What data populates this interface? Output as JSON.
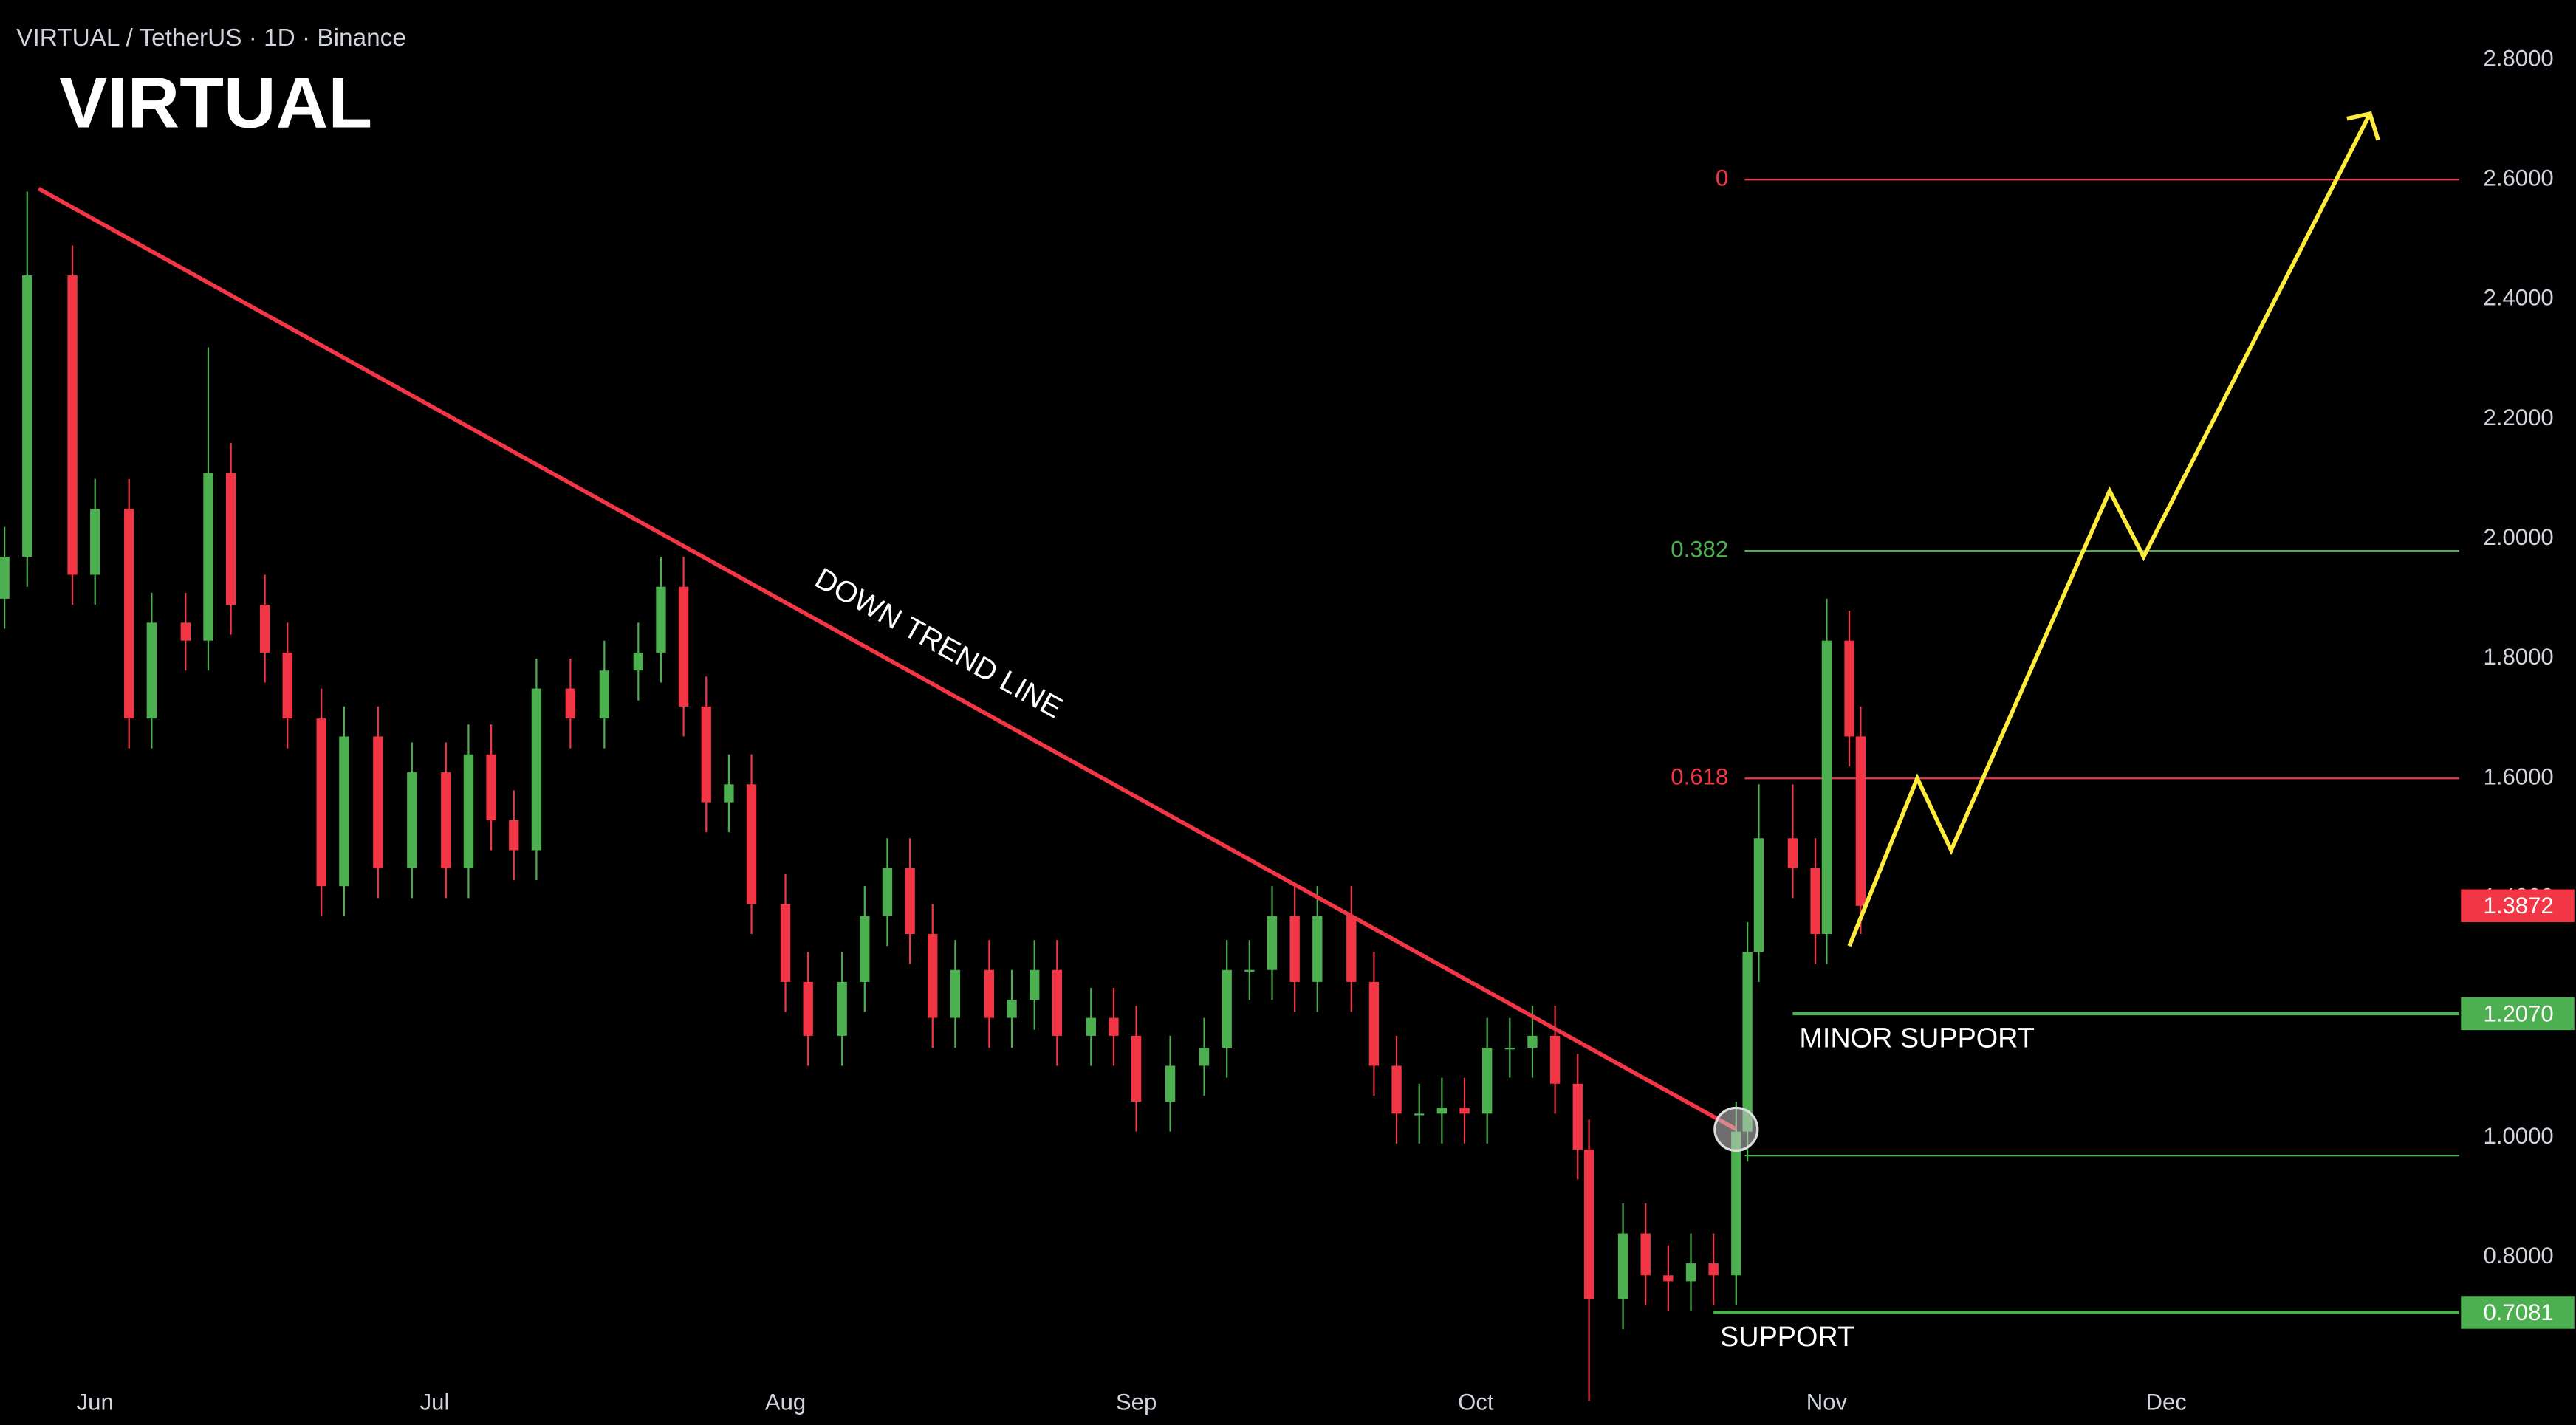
{
  "chart_data": {
    "type": "candlestick",
    "header": "VIRTUAL / TetherUS · 1D · Binance",
    "title": "VIRTUAL",
    "xlim": [
      -8.4,
      208.9
    ],
    "xticks": [
      {
        "value": 0,
        "label": "Jun"
      },
      {
        "value": 30,
        "label": "Jul"
      },
      {
        "value": 61,
        "label": "Aug"
      },
      {
        "value": 92,
        "label": "Sep"
      },
      {
        "value": 122,
        "label": "Oct"
      },
      {
        "value": 153,
        "label": "Nov"
      },
      {
        "value": 183,
        "label": "Dec"
      }
    ],
    "ylim": [
      0.52,
      2.9
    ],
    "yticks": [
      {
        "value": 0.8,
        "label": "0.8000"
      },
      {
        "value": 1.0,
        "label": "1.0000"
      },
      {
        "value": 1.2,
        "label": "1.2000"
      },
      {
        "value": 1.4,
        "label": "1.4000"
      },
      {
        "value": 1.6,
        "label": "1.6000"
      },
      {
        "value": 1.8,
        "label": "1.8000"
      },
      {
        "value": 2.0,
        "label": "2.0000"
      },
      {
        "value": 2.2,
        "label": "2.2000"
      },
      {
        "value": 2.4,
        "label": "2.4000"
      },
      {
        "value": 2.6,
        "label": "2.6000"
      },
      {
        "value": 2.8,
        "label": "2.8000"
      }
    ],
    "up_color": "#4caf50",
    "down_color": "#f23645",
    "x": [
      -8,
      -6,
      -2,
      0,
      3,
      5,
      8,
      10,
      12,
      15,
      17,
      20,
      22,
      25,
      28,
      31,
      33,
      35,
      37,
      39,
      42,
      45,
      48,
      50,
      52,
      54,
      56,
      58,
      61,
      63,
      66,
      68,
      70,
      72,
      74,
      76,
      79,
      81,
      83,
      85,
      88,
      90,
      92,
      95,
      98,
      100,
      102,
      104,
      106,
      108,
      111,
      113,
      115,
      117,
      119,
      121,
      123,
      125,
      127,
      129,
      131,
      132,
      135,
      137,
      139,
      141,
      143,
      145,
      146,
      147,
      150,
      152,
      153,
      155,
      156
    ],
    "open": [
      1.9,
      1.97,
      2.44,
      1.94,
      2.05,
      1.7,
      1.86,
      1.83,
      2.11,
      1.89,
      1.81,
      1.7,
      1.42,
      1.67,
      1.45,
      1.61,
      1.45,
      1.64,
      1.53,
      1.48,
      1.75,
      1.7,
      1.78,
      1.81,
      1.92,
      1.72,
      1.56,
      1.59,
      1.39,
      1.26,
      1.17,
      1.26,
      1.37,
      1.45,
      1.34,
      1.2,
      1.28,
      1.2,
      1.23,
      1.28,
      1.17,
      1.2,
      1.17,
      1.06,
      1.12,
      1.15,
      1.28,
      1.28,
      1.37,
      1.26,
      1.37,
      1.26,
      1.12,
      1.04,
      1.04,
      1.05,
      1.04,
      1.15,
      1.15,
      1.17,
      1.09,
      0.98,
      0.73,
      0.84,
      0.77,
      0.76,
      0.79,
      0.77,
      1.01,
      1.31,
      1.5,
      1.45,
      1.34,
      1.83,
      1.67
    ],
    "high": [
      2.02,
      2.58,
      2.49,
      2.1,
      2.1,
      1.91,
      1.91,
      2.32,
      2.16,
      1.94,
      1.86,
      1.75,
      1.72,
      1.72,
      1.66,
      1.66,
      1.69,
      1.69,
      1.58,
      1.8,
      1.8,
      1.83,
      1.86,
      1.97,
      1.97,
      1.77,
      1.64,
      1.64,
      1.44,
      1.31,
      1.31,
      1.42,
      1.5,
      1.5,
      1.39,
      1.33,
      1.33,
      1.28,
      1.33,
      1.33,
      1.25,
      1.25,
      1.22,
      1.17,
      1.2,
      1.33,
      1.33,
      1.42,
      1.42,
      1.42,
      1.42,
      1.31,
      1.17,
      1.09,
      1.1,
      1.1,
      1.2,
      1.2,
      1.22,
      1.22,
      1.14,
      1.03,
      0.89,
      0.89,
      0.82,
      0.84,
      0.84,
      1.06,
      1.36,
      1.59,
      1.59,
      1.5,
      1.9,
      1.88,
      1.72
    ],
    "low": [
      1.85,
      1.92,
      1.89,
      1.89,
      1.65,
      1.65,
      1.78,
      1.78,
      1.84,
      1.76,
      1.65,
      1.37,
      1.37,
      1.4,
      1.4,
      1.4,
      1.4,
      1.48,
      1.43,
      1.43,
      1.65,
      1.65,
      1.73,
      1.76,
      1.67,
      1.51,
      1.51,
      1.34,
      1.21,
      1.12,
      1.12,
      1.21,
      1.32,
      1.29,
      1.15,
      1.15,
      1.15,
      1.15,
      1.18,
      1.12,
      1.12,
      1.12,
      1.01,
      1.01,
      1.07,
      1.1,
      1.23,
      1.23,
      1.21,
      1.21,
      1.21,
      1.07,
      0.99,
      0.99,
      0.99,
      0.99,
      0.99,
      1.1,
      1.1,
      1.04,
      0.93,
      0.56,
      0.68,
      0.72,
      0.71,
      0.71,
      0.72,
      0.72,
      0.96,
      1.26,
      1.4,
      1.29,
      1.29,
      1.62,
      1.34
    ],
    "close": [
      1.97,
      2.44,
      1.94,
      2.05,
      1.7,
      1.86,
      1.83,
      2.11,
      1.89,
      1.81,
      1.7,
      1.42,
      1.67,
      1.45,
      1.61,
      1.45,
      1.64,
      1.53,
      1.48,
      1.75,
      1.7,
      1.78,
      1.81,
      1.92,
      1.72,
      1.56,
      1.59,
      1.39,
      1.26,
      1.17,
      1.26,
      1.37,
      1.45,
      1.34,
      1.2,
      1.28,
      1.2,
      1.23,
      1.28,
      1.17,
      1.2,
      1.17,
      1.06,
      1.12,
      1.15,
      1.28,
      1.28,
      1.37,
      1.26,
      1.37,
      1.26,
      1.12,
      1.04,
      1.04,
      1.05,
      1.04,
      1.15,
      1.15,
      1.17,
      1.09,
      0.98,
      0.73,
      0.84,
      0.77,
      0.76,
      0.79,
      0.77,
      1.01,
      1.31,
      1.5,
      1.45,
      1.34,
      1.83,
      1.67,
      1.3872
    ],
    "last_price_label": "1.3872",
    "fib_levels": [
      {
        "label": "0",
        "price": 2.6,
        "color": "#f23645"
      },
      {
        "label": "0.382",
        "price": 1.98,
        "color": "#4caf50"
      },
      {
        "label": "0.618",
        "price": 1.6,
        "color": "#f23645"
      },
      {
        "price": 0.97,
        "color": "#4caf50"
      }
    ],
    "supports": [
      {
        "label": "MINOR SUPPORT",
        "price": 1.207,
        "price_label": "1.2070",
        "start": 150
      },
      {
        "label": "SUPPORT",
        "price": 0.7081,
        "price_label": "0.7081",
        "start": 143
      }
    ],
    "support_color": "#4caf50",
    "trend_line": {
      "label": "DOWN TREND LINE",
      "x": [
        -5,
        145
      ],
      "y": [
        2.585,
        1.014
      ],
      "color": "#f23645"
    },
    "projection": {
      "x": [
        155,
        161,
        164,
        178,
        181,
        201
      ],
      "y": [
        1.32,
        1.6,
        1.48,
        2.08,
        1.97,
        2.71
      ],
      "color": "#ffeb3b"
    }
  }
}
